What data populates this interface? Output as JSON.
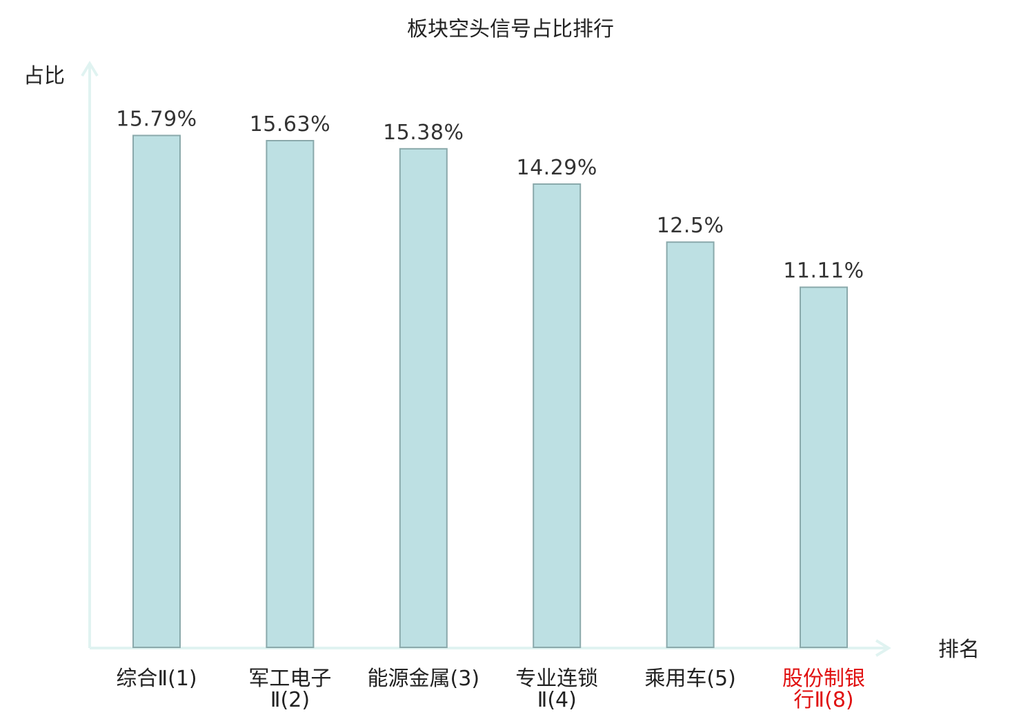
{
  "chart_data": {
    "type": "bar",
    "title": "板块空头信号占比排行",
    "xlabel": "排名",
    "ylabel": "占比",
    "categories": [
      [
        "综合Ⅱ(1)"
      ],
      [
        "军工电子",
        "Ⅱ(2)"
      ],
      [
        "能源金属(3)"
      ],
      [
        "专业连锁",
        "Ⅱ(4)"
      ],
      [
        "乘用车(5)"
      ],
      [
        "股份制银",
        "行Ⅱ(8)"
      ]
    ],
    "values": [
      15.79,
      15.63,
      15.38,
      14.29,
      12.5,
      11.11
    ],
    "value_labels": [
      "15.79%",
      "15.63%",
      "15.38%",
      "14.29%",
      "12.5%",
      "11.11%"
    ],
    "highlighted_category_index": 5,
    "ylim": [
      0,
      16.8
    ],
    "grid": false,
    "legend": "none",
    "colors": {
      "bar_fill": "#bde0e3",
      "bar_stroke": "#8aa9ab",
      "axis": "#e0f3f1",
      "label_default": "#222222",
      "label_highlight": "#e01010",
      "value_text": "#333333"
    }
  }
}
